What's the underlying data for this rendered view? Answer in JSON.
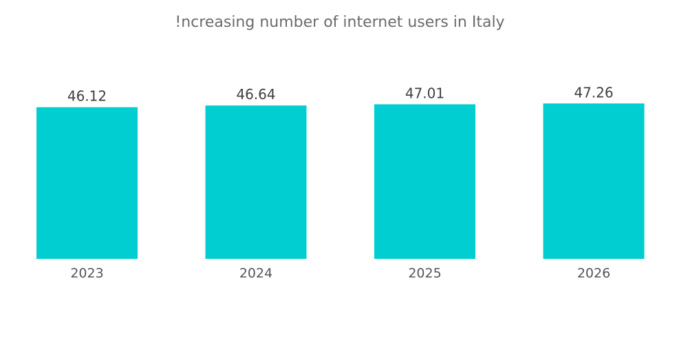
{
  "chart_data": {
    "type": "bar",
    "title": "!ncreasing number of internet users in Italy",
    "categories": [
      "2023",
      "2024",
      "2025",
      "2026"
    ],
    "values": [
      46.12,
      46.64,
      47.01,
      47.26
    ],
    "value_labels": [
      "46.12",
      "46.64",
      "47.01",
      "47.26"
    ],
    "xlabel": "",
    "ylabel": "",
    "ylim": [
      0,
      49.2
    ],
    "grid": false,
    "legend": "none",
    "bar_color": "#00CED1"
  }
}
